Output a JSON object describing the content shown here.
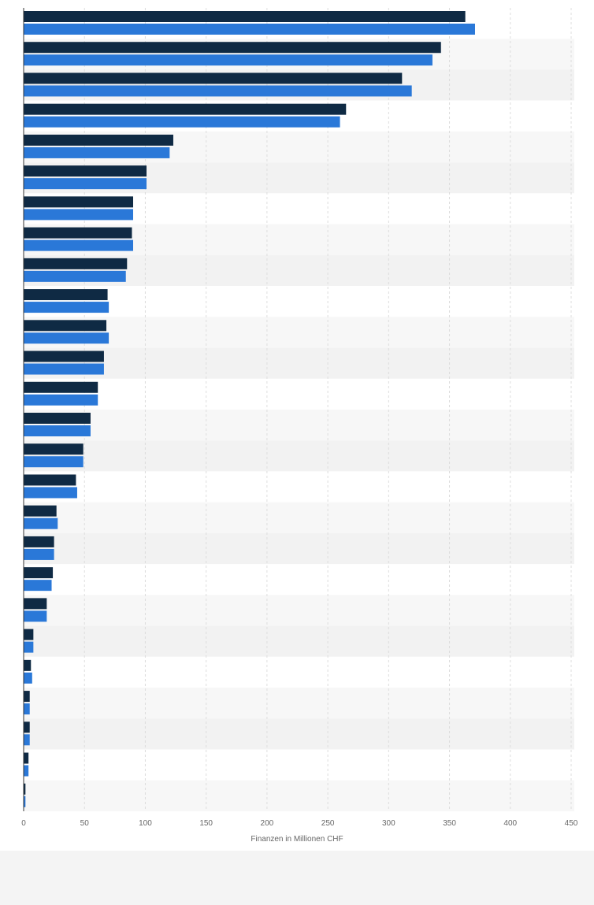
{
  "chart_data": {
    "type": "bar",
    "orientation": "horizontal",
    "xlabel": "Finanzen in Millionen CHF",
    "xlim": [
      0,
      450
    ],
    "xticks": [
      0,
      50,
      100,
      150,
      200,
      250,
      300,
      350,
      400,
      450
    ],
    "grid": "vertical",
    "series": [
      {
        "color": "#0f2a44",
        "values": [
          363,
          343,
          311,
          265,
          123,
          101,
          90,
          89,
          85,
          69,
          68,
          66,
          61,
          55,
          49,
          43,
          27,
          25,
          24,
          19,
          8,
          6,
          5,
          5,
          4,
          1.5
        ]
      },
      {
        "color": "#2a78d8",
        "values": [
          371,
          336,
          319,
          260,
          120,
          101,
          90,
          90,
          84,
          70,
          70,
          66,
          61,
          55,
          49,
          44,
          28,
          25,
          23,
          19,
          8,
          7,
          5,
          5,
          4,
          1.5
        ]
      }
    ],
    "band_colors": [
      "#ffffff",
      "#f7f7f7",
      "#f2f2f2"
    ]
  }
}
